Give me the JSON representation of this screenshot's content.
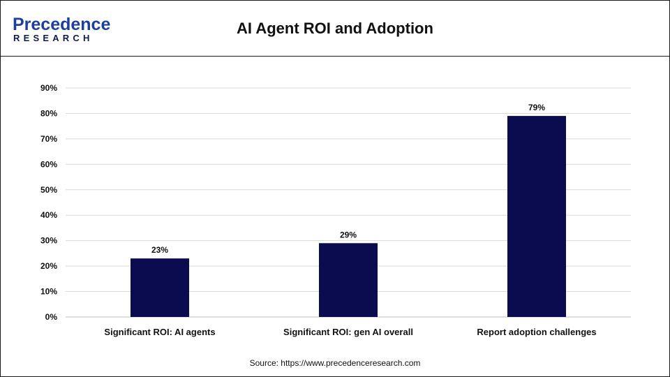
{
  "header": {
    "title": "AI Agent ROI and Adoption",
    "logo_line1": "Precedence",
    "logo_line2": "RESEARCH"
  },
  "footer": {
    "source": "Source: https://www.precedenceresearch.com"
  },
  "colors": {
    "bar": "#0b0b4f",
    "logo_blue": "#1e3f9e",
    "logo_dark": "#0d1b4f"
  },
  "chart_data": {
    "type": "bar",
    "title": "AI Agent ROI and Adoption",
    "categories": [
      "Significant ROI: AI agents",
      "Significant ROI: gen AI overall",
      "Report adoption challenges"
    ],
    "values": [
      23,
      29,
      79
    ],
    "value_labels": [
      "23%",
      "29%",
      "79%"
    ],
    "ylim": [
      0,
      90
    ],
    "yticks": [
      "0%",
      "10%",
      "20%",
      "30%",
      "40%",
      "50%",
      "60%",
      "70%",
      "80%",
      "90%"
    ],
    "grid": true,
    "legend": "none"
  }
}
